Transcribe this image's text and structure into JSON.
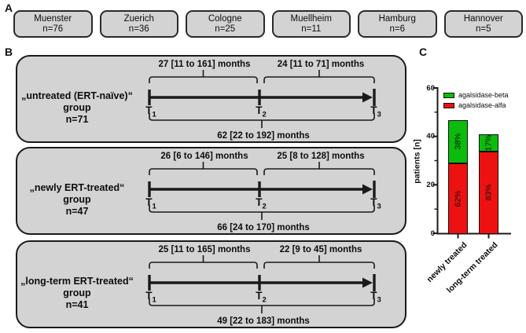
{
  "panelA": {
    "label": "A",
    "centers": [
      {
        "name": "Muenster",
        "n": "n=76"
      },
      {
        "name": "Zuerich",
        "n": "n=36"
      },
      {
        "name": "Cologne",
        "n": "n=25"
      },
      {
        "name": "Muellheim",
        "n": "n=11"
      },
      {
        "name": "Hamburg",
        "n": "n=6"
      },
      {
        "name": "Hannover",
        "n": "n=5"
      }
    ]
  },
  "panelB": {
    "label": "B",
    "t_labels": [
      {
        "base": "T",
        "sub": "1"
      },
      {
        "base": "T",
        "sub": "2"
      },
      {
        "base": "T",
        "sub": "3"
      }
    ],
    "groups": [
      {
        "name": "„untreated (ERT-naïve)“ group",
        "n": "n=71",
        "interval1": "27 [11 to 161] months",
        "interval2": "24 [11 to 71] months",
        "total": "62 [22 to 192] months"
      },
      {
        "name": "„newly ERT-treated“ group",
        "n": "n=47",
        "interval1": "26 [6 to 146] months",
        "interval2": "25 [8 to 128] months",
        "total": "66 [24 to 170] months"
      },
      {
        "name": "„long-term ERT-treated“ group",
        "n": "n=41",
        "interval1": "25 [11 to 165] months",
        "interval2": "22 [9 to 45] months",
        "total": "49 [22 to 183] months"
      }
    ]
  },
  "panelC": {
    "label": "C"
  },
  "chart_data": {
    "type": "bar",
    "stacked": true,
    "categories": [
      "newly treated",
      "long-term treated"
    ],
    "series": [
      {
        "name": "agalsidase-alfa",
        "color": "#ee1111",
        "values": [
          29,
          34
        ],
        "percent_labels": [
          "62%",
          "83%"
        ]
      },
      {
        "name": "agalsidase-beta",
        "color": "#0cbc0c",
        "values": [
          18,
          7
        ],
        "percent_labels": [
          "38%",
          "17%"
        ]
      }
    ],
    "totals": [
      47,
      41
    ],
    "ylabel": "patients [n]",
    "ylim": [
      0,
      60
    ],
    "yticks": [
      0,
      20,
      40,
      60
    ],
    "legend_position": "top-left"
  }
}
